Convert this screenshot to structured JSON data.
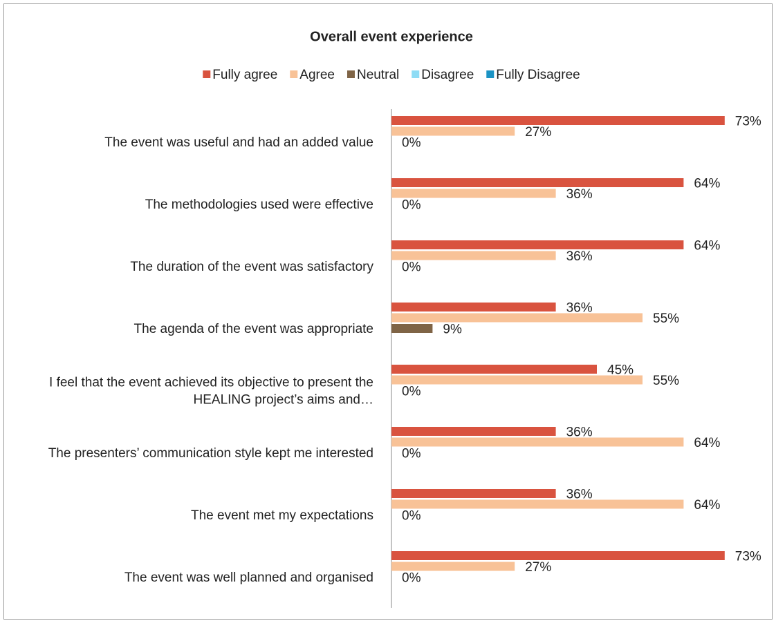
{
  "chart_data": {
    "type": "bar",
    "orientation": "horizontal",
    "title": "Overall event experience",
    "categories": [
      "The event was useful and had an added value",
      "The methodologies used were effective",
      "The duration of the event was satisfactory",
      "The agenda of the event was appropriate",
      "I feel that the event achieved its objective to present the HEALING project’s aims and…",
      "The presenters’ communication style kept me interested",
      "The event met my expectations",
      "The event was well planned and organised"
    ],
    "series": [
      {
        "name": "Fully agree",
        "color": "#d9533f",
        "values": [
          73,
          64,
          64,
          36,
          45,
          36,
          36,
          73
        ],
        "value_labels": [
          "73%",
          "64%",
          "64%",
          "36%",
          "45%",
          "36%",
          "36%",
          "73%"
        ]
      },
      {
        "name": "Agree",
        "color": "#f8c297",
        "values": [
          27,
          36,
          36,
          55,
          55,
          64,
          64,
          27
        ],
        "value_labels": [
          "27%",
          "36%",
          "36%",
          "55%",
          "55%",
          "64%",
          "64%",
          "27%"
        ]
      },
      {
        "name": "Neutral",
        "color": "#7f6446",
        "values": [
          0,
          0,
          0,
          9,
          0,
          0,
          0,
          0
        ],
        "value_labels": [
          "0%",
          "0%",
          "0%",
          "9%",
          "0%",
          "0%",
          "0%",
          "0%"
        ]
      },
      {
        "name": "Disagree",
        "color": "#8edcf5",
        "values": [
          null,
          null,
          null,
          null,
          null,
          null,
          null,
          null
        ]
      },
      {
        "name": "Fully Disagree",
        "color": "#1b93c4",
        "values": [
          null,
          null,
          null,
          null,
          null,
          null,
          null,
          null
        ]
      }
    ],
    "xlim": [
      0,
      80
    ]
  }
}
